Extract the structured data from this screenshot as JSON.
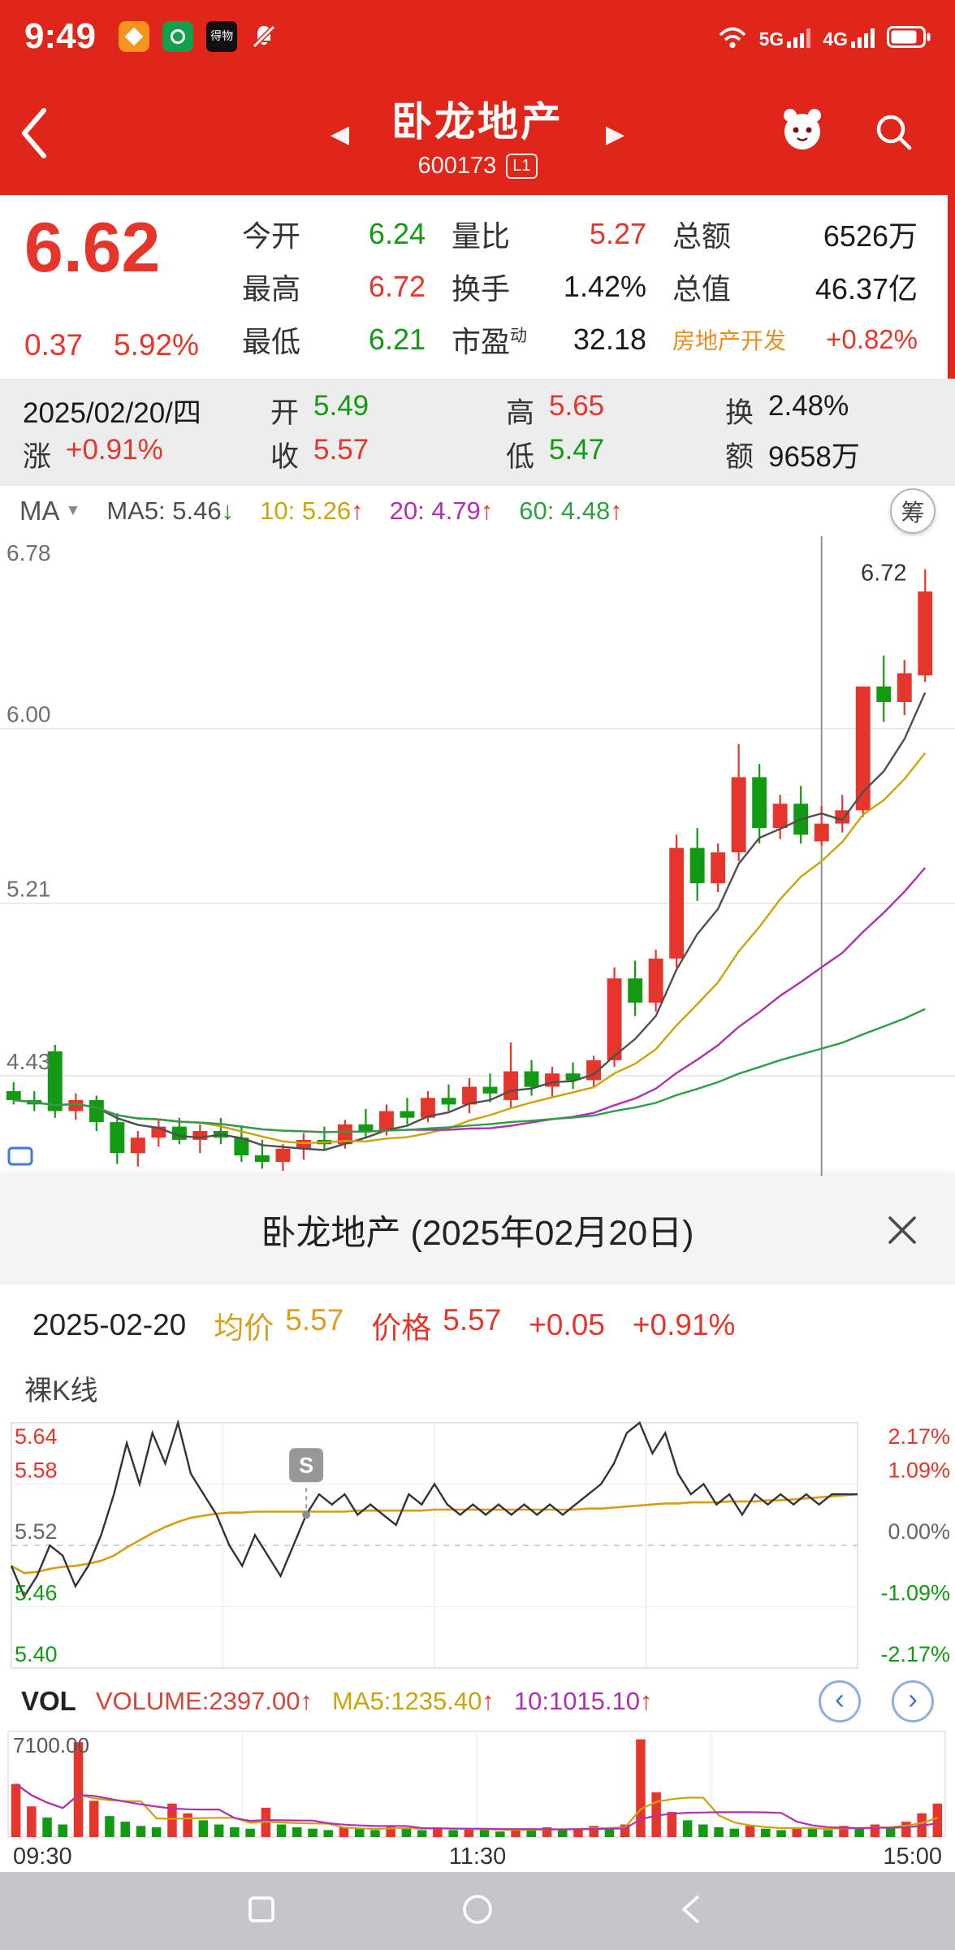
{
  "colors": {
    "header_red": "#e0251b",
    "up": "#e6352b",
    "down": "#129a12",
    "ma5": "#4f4f4f",
    "ma10": "#c9a40a",
    "ma20": "#b030b0",
    "ma60": "#2f9e44",
    "price_line": "#333333",
    "avg_line": "#d99b12",
    "sector_orange": "#e98e1e"
  },
  "status_bar": {
    "time": "9:49",
    "dewu_badge": "得物",
    "net1": "5G",
    "net2": "4G"
  },
  "header": {
    "title": "卧龙地产",
    "code": "600173",
    "level_badge": "L1"
  },
  "quote": {
    "price": "6.62",
    "change": "0.37",
    "change_pct": "5.92%",
    "rows": [
      {
        "l1": "今开",
        "v1": "6.24",
        "l2": "量比",
        "v2": "5.27",
        "l3": "总额",
        "v3": "6526万"
      },
      {
        "l1": "最高",
        "v1": "6.72",
        "l2": "换手",
        "v2": "1.42%",
        "l3": "总值",
        "v3": "46.37亿"
      },
      {
        "l1": "最低",
        "v1": "6.21",
        "l2": "市盈",
        "l2sup": "动",
        "v2": "32.18",
        "l3": "房地产开发",
        "v3": "+0.82%"
      }
    ]
  },
  "crosshair_info": {
    "date": "2025/02/20/四",
    "open_label": "开",
    "open": "5.49",
    "high_label": "高",
    "high": "5.65",
    "turnover_label": "换",
    "turnover": "2.48%",
    "change_label": "涨",
    "change": "+0.91%",
    "close_label": "收",
    "close": "5.57",
    "low_label": "低",
    "low": "5.47",
    "amount_label": "额",
    "amount": "9658万"
  },
  "ma_bar": {
    "selector": "MA",
    "dropdown_icon": "▼",
    "items": [
      {
        "text": "MA5: 5.46",
        "arrow": "↓"
      },
      {
        "text": "10: 5.26",
        "arrow": "↑"
      },
      {
        "text": "20: 4.79",
        "arrow": "↑"
      },
      {
        "text": "60: 4.48",
        "arrow": "↑"
      }
    ],
    "chip_button": "筹"
  },
  "sheet": {
    "title": "卧龙地产 (2025年02月20日)"
  },
  "intra_info": {
    "date": "2025-02-20",
    "avg_label": "均价",
    "avg": "5.57",
    "price_label": "价格",
    "price": "5.57",
    "change": "+0.05",
    "change_pct": "+0.91%"
  },
  "naked_k_label": "裸K线",
  "vol_bar": {
    "label": "VOL",
    "items": [
      {
        "text": "VOLUME:2397.00",
        "arrow": "↑"
      },
      {
        "text": "MA5:1235.40",
        "arrow": "↑"
      },
      {
        "text": "10:1015.10",
        "arrow": "↑"
      }
    ],
    "prev_icon": "‹",
    "next_icon": "›"
  },
  "time_axis": [
    "09:30",
    "11:30",
    "15:00"
  ],
  "chart_data": [
    {
      "type": "candlestick",
      "y_range": [
        4.0,
        6.84
      ],
      "y_axis": [
        {
          "t": "6.78",
          "v": 6.78,
          "grid": false
        },
        {
          "t": "6.00",
          "v": 6.0,
          "grid": true
        },
        {
          "t": "5.21",
          "v": 5.21,
          "grid": true
        },
        {
          "t": "4.43",
          "v": 4.43,
          "grid": true
        }
      ],
      "high_label": "6.72",
      "crosshair_index": 39,
      "crosshair_date": "2025/02/20",
      "candles": [
        [
          4.36,
          4.4,
          4.3,
          4.32
        ],
        [
          4.32,
          4.36,
          4.27,
          4.3
        ],
        [
          4.54,
          4.57,
          4.24,
          4.27
        ],
        [
          4.27,
          4.35,
          4.23,
          4.32
        ],
        [
          4.32,
          4.34,
          4.18,
          4.22
        ],
        [
          4.22,
          4.26,
          4.03,
          4.08
        ],
        [
          4.08,
          4.18,
          4.02,
          4.15
        ],
        [
          4.15,
          4.23,
          4.11,
          4.2
        ],
        [
          4.2,
          4.24,
          4.12,
          4.14
        ],
        [
          4.14,
          4.21,
          4.08,
          4.18
        ],
        [
          4.18,
          4.24,
          4.12,
          4.15
        ],
        [
          4.15,
          4.2,
          4.04,
          4.07
        ],
        [
          4.07,
          4.14,
          4.01,
          4.04
        ],
        [
          4.04,
          4.12,
          4.0,
          4.1
        ],
        [
          4.1,
          4.17,
          4.05,
          4.14
        ],
        [
          4.14,
          4.2,
          4.09,
          4.12
        ],
        [
          4.12,
          4.23,
          4.1,
          4.21
        ],
        [
          4.21,
          4.28,
          4.15,
          4.18
        ],
        [
          4.18,
          4.3,
          4.16,
          4.27
        ],
        [
          4.27,
          4.33,
          4.21,
          4.24
        ],
        [
          4.24,
          4.36,
          4.22,
          4.33
        ],
        [
          4.33,
          4.39,
          4.27,
          4.3
        ],
        [
          4.3,
          4.42,
          4.26,
          4.38
        ],
        [
          4.38,
          4.44,
          4.31,
          4.35
        ],
        [
          4.32,
          4.58,
          4.28,
          4.45
        ],
        [
          4.45,
          4.5,
          4.34,
          4.38
        ],
        [
          4.38,
          4.47,
          4.33,
          4.44
        ],
        [
          4.44,
          4.49,
          4.37,
          4.41
        ],
        [
          4.41,
          4.52,
          4.38,
          4.5
        ],
        [
          4.5,
          4.92,
          4.47,
          4.87
        ],
        [
          4.87,
          4.95,
          4.7,
          4.76
        ],
        [
          4.76,
          5.0,
          4.72,
          4.96
        ],
        [
          4.96,
          5.52,
          4.92,
          5.46
        ],
        [
          5.46,
          5.55,
          5.22,
          5.3
        ],
        [
          5.3,
          5.48,
          5.26,
          5.44
        ],
        [
          5.44,
          5.93,
          5.4,
          5.78
        ],
        [
          5.78,
          5.84,
          5.48,
          5.55
        ],
        [
          5.55,
          5.7,
          5.5,
          5.66
        ],
        [
          5.66,
          5.74,
          5.48,
          5.52
        ],
        [
          5.49,
          5.65,
          5.47,
          5.57
        ],
        [
          5.57,
          5.7,
          5.53,
          5.63
        ],
        [
          5.63,
          6.19,
          5.6,
          6.19
        ],
        [
          6.19,
          6.33,
          6.03,
          6.12
        ],
        [
          6.12,
          6.31,
          6.06,
          6.25
        ],
        [
          6.24,
          6.72,
          6.21,
          6.62
        ]
      ]
    },
    {
      "type": "line",
      "prev_close": 5.52,
      "y_range": [
        5.4,
        5.64
      ],
      "levels": [
        {
          "t": "5.64",
          "v": 5.64,
          "rt": "2.17%"
        },
        {
          "t": "5.58",
          "v": 5.58,
          "rt": "1.09%"
        },
        {
          "t": "5.52",
          "v": 5.52,
          "rt": "0.00%"
        },
        {
          "t": "5.46",
          "v": 5.46,
          "rt": "-1.09%"
        },
        {
          "t": "5.40",
          "v": 5.4,
          "rt": "-2.17%"
        }
      ],
      "x_ticks": [
        "09:30",
        "11:30",
        "15:00"
      ],
      "s_marker": {
        "t": 0.348,
        "label": "S"
      },
      "price": [
        5.5,
        5.47,
        5.49,
        5.52,
        5.51,
        5.48,
        5.5,
        5.53,
        5.57,
        5.62,
        5.58,
        5.63,
        5.6,
        5.64,
        5.59,
        5.57,
        5.55,
        5.52,
        5.5,
        5.53,
        5.51,
        5.49,
        5.52,
        5.55,
        5.57,
        5.56,
        5.57,
        5.55,
        5.56,
        5.55,
        5.54,
        5.57,
        5.56,
        5.58,
        5.56,
        5.55,
        5.56,
        5.55,
        5.56,
        5.55,
        5.56,
        5.55,
        5.56,
        5.55,
        5.56,
        5.57,
        5.58,
        5.6,
        5.63,
        5.64,
        5.61,
        5.63,
        5.59,
        5.57,
        5.58,
        5.56,
        5.57,
        5.55,
        5.57,
        5.56,
        5.57,
        5.56,
        5.57,
        5.56,
        5.57,
        5.57,
        5.57
      ],
      "avg": [
        5.5,
        5.493,
        5.494,
        5.497,
        5.499,
        5.5,
        5.502,
        5.505,
        5.51,
        5.518,
        5.525,
        5.532,
        5.538,
        5.543,
        5.547,
        5.549,
        5.551,
        5.552,
        5.552,
        5.553,
        5.553,
        5.553,
        5.553,
        5.553,
        5.553,
        5.553,
        5.553,
        5.554,
        5.554,
        5.554,
        5.554,
        5.554,
        5.554,
        5.555,
        5.555,
        5.555,
        5.555,
        5.555,
        5.555,
        5.555,
        5.555,
        5.555,
        5.555,
        5.555,
        5.555,
        5.556,
        5.556,
        5.557,
        5.558,
        5.559,
        5.56,
        5.561,
        5.561,
        5.562,
        5.562,
        5.562,
        5.563,
        5.563,
        5.563,
        5.564,
        5.564,
        5.565,
        5.566,
        5.567,
        5.568,
        5.569,
        5.57
      ]
    },
    {
      "type": "bar",
      "ymax": 7100,
      "ymax_label": "7100.00",
      "values": [
        3800,
        2200,
        1400,
        900,
        6800,
        2600,
        1500,
        1100,
        800,
        700,
        2400,
        1700,
        1200,
        900,
        700,
        600,
        2100,
        900,
        700,
        600,
        500,
        700,
        600,
        500,
        800,
        600,
        500,
        700,
        500,
        600,
        500,
        400,
        600,
        500,
        700,
        500,
        600,
        800,
        700,
        900,
        7000,
        3200,
        1800,
        1200,
        900,
        700,
        600,
        800,
        600,
        500,
        700,
        600,
        500,
        800,
        600,
        900,
        700,
        1100,
        1700,
        2400
      ],
      "colors": [
        "r",
        "r",
        "g",
        "g",
        "r",
        "r",
        "g",
        "g",
        "g",
        "g",
        "r",
        "r",
        "g",
        "g",
        "g",
        "g",
        "r",
        "g",
        "g",
        "g",
        "g",
        "r",
        "g",
        "g",
        "r",
        "g",
        "g",
        "r",
        "g",
        "r",
        "g",
        "g",
        "r",
        "g",
        "r",
        "g",
        "r",
        "r",
        "g",
        "r",
        "r",
        "r",
        "r",
        "g",
        "g",
        "g",
        "g",
        "r",
        "g",
        "g",
        "r",
        "g",
        "g",
        "r",
        "g",
        "r",
        "g",
        "r",
        "r",
        "r"
      ]
    }
  ]
}
